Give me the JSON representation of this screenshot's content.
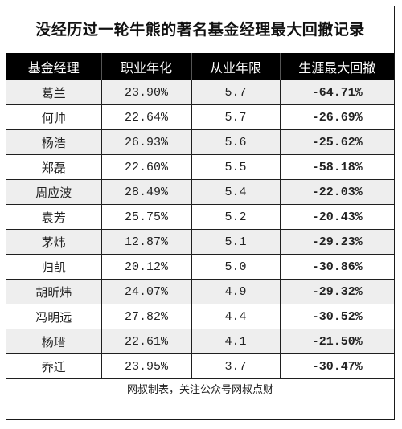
{
  "title": "没经历过一轮牛熊的著名基金经理最大回撤记录",
  "headers": [
    "基金经理",
    "职业年化",
    "从业年限",
    "生涯最大回撤"
  ],
  "rows": [
    {
      "name": "葛兰",
      "annual": "23.90%",
      "years": "5.7",
      "drawdown": "-64.71%"
    },
    {
      "name": "何帅",
      "annual": "22.64%",
      "years": "5.7",
      "drawdown": "-26.69%"
    },
    {
      "name": "杨浩",
      "annual": "26.93%",
      "years": "5.6",
      "drawdown": "-25.62%"
    },
    {
      "name": "郑磊",
      "annual": "22.60%",
      "years": "5.5",
      "drawdown": "-58.18%"
    },
    {
      "name": "周应波",
      "annual": "28.49%",
      "years": "5.4",
      "drawdown": "-22.03%"
    },
    {
      "name": "袁芳",
      "annual": "25.75%",
      "years": "5.2",
      "drawdown": "-20.43%"
    },
    {
      "name": "茅炜",
      "annual": "12.87%",
      "years": "5.1",
      "drawdown": "-29.23%"
    },
    {
      "name": "归凯",
      "annual": "20.12%",
      "years": "5.0",
      "drawdown": "-30.86%"
    },
    {
      "name": "胡昕炜",
      "annual": "24.07%",
      "years": "4.9",
      "drawdown": "-29.32%"
    },
    {
      "name": "冯明远",
      "annual": "27.82%",
      "years": "4.4",
      "drawdown": "-30.52%"
    },
    {
      "name": "杨瑨",
      "annual": "22.61%",
      "years": "4.1",
      "drawdown": "-21.50%"
    },
    {
      "name": "乔迁",
      "annual": "23.95%",
      "years": "3.7",
      "drawdown": "-30.47%"
    }
  ],
  "footer": "网叔制表，关注公众号网叔点财"
}
